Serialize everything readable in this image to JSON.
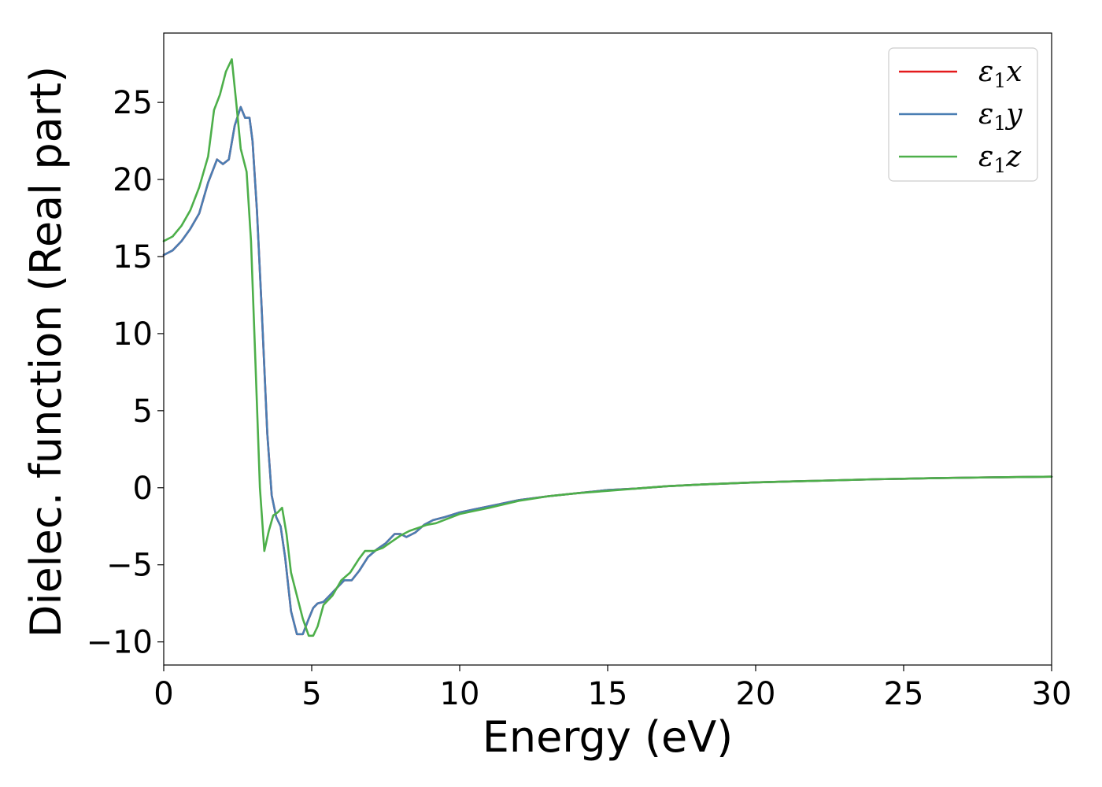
{
  "chart_data": {
    "type": "line",
    "title": "",
    "xlabel": "Energy (eV)",
    "ylabel": "Dielec. function (Real part)",
    "xlim": [
      0,
      30
    ],
    "ylim": [
      -11.5,
      29.5
    ],
    "xticks": [
      0,
      5,
      10,
      15,
      20,
      25,
      30
    ],
    "yticks": [
      -10,
      -5,
      0,
      5,
      10,
      15,
      20,
      25
    ],
    "ytick_labels": [
      "−10",
      "−5",
      "0",
      "5",
      "10",
      "15",
      "20",
      "25"
    ],
    "grid": false,
    "legend": "top-right",
    "series": [
      {
        "name": "ε₁x",
        "legend": {
          "base": "ε",
          "sub": "1",
          "var": "x"
        },
        "color": "#e41a1c",
        "x": [
          0,
          0.3,
          0.6,
          0.9,
          1.2,
          1.5,
          1.8,
          2.0,
          2.2,
          2.4,
          2.6,
          2.75,
          2.9,
          3.0,
          3.15,
          3.3,
          3.5,
          3.65,
          3.8,
          3.95,
          4.1,
          4.3,
          4.5,
          4.7,
          4.9,
          5.05,
          5.2,
          5.4,
          5.6,
          5.8,
          6.1,
          6.35,
          6.6,
          6.9,
          7.2,
          7.5,
          7.8,
          8.0,
          8.2,
          8.5,
          8.8,
          9.1,
          9.5,
          10.0,
          10.5,
          11.0,
          12.0,
          13.0,
          14.0,
          15.0,
          16.0,
          17.0,
          18.0,
          20.0,
          22.0,
          24.0,
          26.0,
          28.0,
          30.0
        ],
        "y": [
          15.1,
          15.4,
          16.0,
          16.8,
          17.8,
          19.8,
          21.3,
          21.0,
          21.3,
          23.5,
          24.7,
          24.0,
          24.0,
          22.5,
          18.0,
          12.0,
          3.5,
          -0.5,
          -1.9,
          -2.5,
          -4.5,
          -8.0,
          -9.5,
          -9.5,
          -8.5,
          -7.8,
          -7.5,
          -7.4,
          -7.0,
          -6.6,
          -6.0,
          -6.0,
          -5.4,
          -4.5,
          -4.0,
          -3.6,
          -3.0,
          -3.0,
          -3.2,
          -2.9,
          -2.4,
          -2.1,
          -1.9,
          -1.6,
          -1.4,
          -1.2,
          -0.8,
          -0.55,
          -0.35,
          -0.15,
          -0.05,
          0.1,
          0.2,
          0.35,
          0.45,
          0.55,
          0.62,
          0.68,
          0.72
        ]
      },
      {
        "name": "ε₁y",
        "legend": {
          "base": "ε",
          "sub": "1",
          "var": "y"
        },
        "color": "#4a7eb3",
        "x": [
          0,
          0.3,
          0.6,
          0.9,
          1.2,
          1.5,
          1.8,
          2.0,
          2.2,
          2.4,
          2.6,
          2.75,
          2.9,
          3.0,
          3.15,
          3.3,
          3.5,
          3.65,
          3.8,
          3.95,
          4.1,
          4.3,
          4.5,
          4.7,
          4.9,
          5.05,
          5.2,
          5.4,
          5.6,
          5.8,
          6.1,
          6.35,
          6.6,
          6.9,
          7.2,
          7.5,
          7.8,
          8.0,
          8.2,
          8.5,
          8.8,
          9.1,
          9.5,
          10.0,
          10.5,
          11.0,
          12.0,
          13.0,
          14.0,
          15.0,
          16.0,
          17.0,
          18.0,
          20.0,
          22.0,
          24.0,
          26.0,
          28.0,
          30.0
        ],
        "y": [
          15.1,
          15.4,
          16.0,
          16.8,
          17.8,
          19.8,
          21.3,
          21.0,
          21.3,
          23.5,
          24.7,
          24.0,
          24.0,
          22.5,
          18.0,
          12.0,
          3.5,
          -0.5,
          -1.9,
          -2.5,
          -4.5,
          -8.0,
          -9.5,
          -9.5,
          -8.5,
          -7.8,
          -7.5,
          -7.4,
          -7.0,
          -6.6,
          -6.0,
          -6.0,
          -5.4,
          -4.5,
          -4.0,
          -3.6,
          -3.0,
          -3.0,
          -3.2,
          -2.9,
          -2.4,
          -2.1,
          -1.9,
          -1.6,
          -1.4,
          -1.2,
          -0.8,
          -0.55,
          -0.35,
          -0.15,
          -0.05,
          0.1,
          0.2,
          0.35,
          0.45,
          0.55,
          0.62,
          0.68,
          0.72
        ]
      },
      {
        "name": "ε₁z",
        "legend": {
          "base": "ε",
          "sub": "1",
          "var": "z"
        },
        "color": "#4daf4a",
        "x": [
          0,
          0.3,
          0.6,
          0.9,
          1.2,
          1.5,
          1.7,
          1.9,
          2.1,
          2.3,
          2.45,
          2.6,
          2.8,
          2.95,
          3.1,
          3.25,
          3.4,
          3.55,
          3.7,
          3.85,
          4.0,
          4.15,
          4.3,
          4.5,
          4.7,
          4.9,
          5.05,
          5.2,
          5.4,
          5.7,
          6.0,
          6.3,
          6.6,
          6.8,
          7.1,
          7.4,
          7.7,
          8.0,
          8.3,
          8.6,
          8.9,
          9.2,
          9.6,
          10.0,
          10.5,
          11.0,
          12.0,
          13.0,
          14.0,
          15.0,
          16.0,
          17.0,
          18.0,
          20.0,
          22.0,
          24.0,
          26.0,
          28.0,
          30.0
        ],
        "y": [
          16.0,
          16.3,
          17.0,
          18.0,
          19.5,
          21.5,
          24.5,
          25.5,
          27.0,
          27.8,
          25.0,
          22.0,
          20.5,
          16.0,
          8.0,
          0.0,
          -4.1,
          -2.8,
          -1.8,
          -1.6,
          -1.3,
          -3.0,
          -5.5,
          -7.0,
          -8.5,
          -9.6,
          -9.6,
          -9.0,
          -7.6,
          -7.0,
          -6.0,
          -5.5,
          -4.6,
          -4.1,
          -4.1,
          -3.9,
          -3.5,
          -3.1,
          -2.8,
          -2.6,
          -2.4,
          -2.3,
          -2.0,
          -1.7,
          -1.5,
          -1.3,
          -0.85,
          -0.55,
          -0.35,
          -0.2,
          -0.05,
          0.1,
          0.2,
          0.35,
          0.45,
          0.55,
          0.62,
          0.68,
          0.72
        ]
      }
    ]
  }
}
